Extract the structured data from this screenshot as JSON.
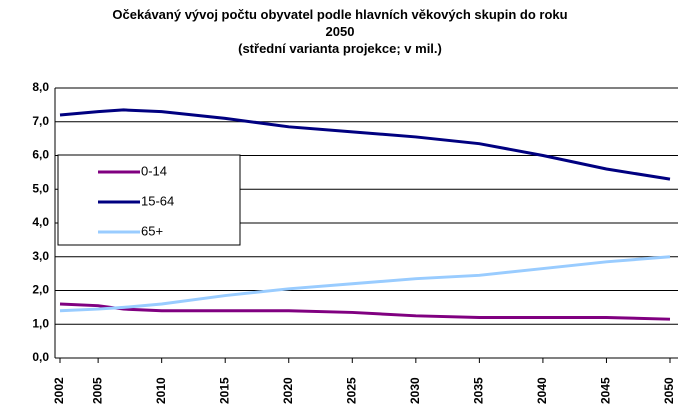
{
  "chart_data": {
    "type": "line",
    "title": "Očekávaný vývoj počtu obyvatel podle hlavních věkových skupin do roku 2050",
    "subtitle": "(střední varianta projekce; v mil.)",
    "x": [
      2002,
      2005,
      2007,
      2010,
      2015,
      2020,
      2025,
      2030,
      2035,
      2040,
      2045,
      2050
    ],
    "series": [
      {
        "name": "0-14",
        "color": "#800080",
        "values": [
          1.6,
          1.55,
          1.45,
          1.4,
          1.4,
          1.4,
          1.35,
          1.25,
          1.2,
          1.2,
          1.2,
          1.15
        ]
      },
      {
        "name": "15-64",
        "color": "#000080",
        "values": [
          7.2,
          7.3,
          7.35,
          7.3,
          7.1,
          6.85,
          6.7,
          6.55,
          6.35,
          6.0,
          5.6,
          5.3
        ]
      },
      {
        "name": "65+",
        "color": "#99ccff",
        "values": [
          1.4,
          1.45,
          1.5,
          1.6,
          1.85,
          2.05,
          2.2,
          2.35,
          2.45,
          2.65,
          2.85,
          3.0
        ]
      }
    ],
    "xlim": [
      2002,
      2050
    ],
    "xticks": [
      2002,
      2005,
      2010,
      2015,
      2020,
      2025,
      2030,
      2035,
      2040,
      2045,
      2050
    ],
    "ylim": [
      0,
      8
    ],
    "yticks": [
      {
        "value": 0,
        "label": "0,0"
      },
      {
        "value": 1,
        "label": "1,0"
      },
      {
        "value": 2,
        "label": "2,0"
      },
      {
        "value": 3,
        "label": "3,0"
      },
      {
        "value": 4,
        "label": "4,0"
      },
      {
        "value": 5,
        "label": "5,0"
      },
      {
        "value": 6,
        "label": "6,0"
      },
      {
        "value": 7,
        "label": "7,0"
      },
      {
        "value": 8,
        "label": "8,0"
      }
    ],
    "grid": true,
    "legend": "upper left"
  }
}
